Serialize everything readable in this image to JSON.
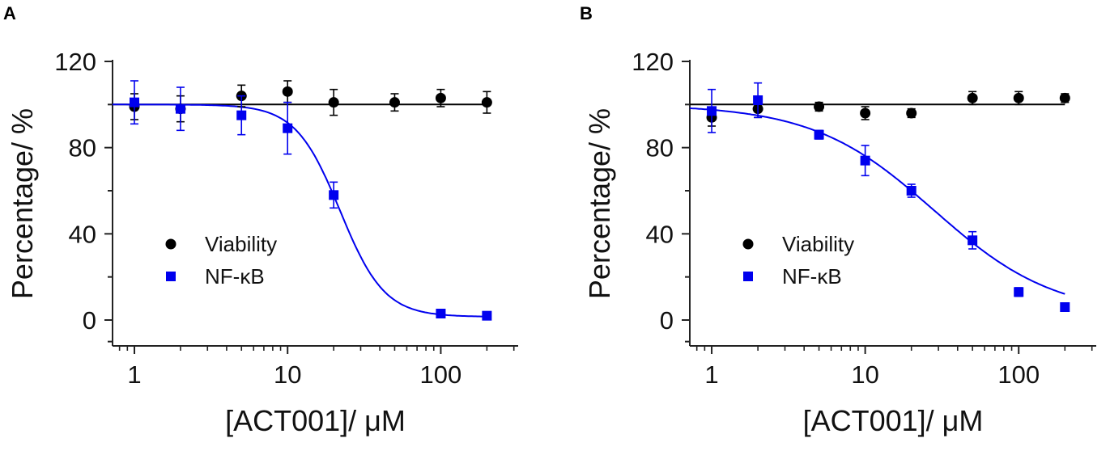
{
  "figure": {
    "panel_labels": [
      "A",
      "B"
    ]
  },
  "chart_data": [
    {
      "type": "scatter",
      "panel": "A",
      "title": "",
      "xlabel": "[ACT001]/ μM",
      "ylabel": "Percentage/ %",
      "xscale": "log",
      "xlim": [
        0.72,
        320
      ],
      "ylim": [
        -12,
        120
      ],
      "xticks": [
        1,
        10,
        100
      ],
      "xtick_labels": [
        "1",
        "10",
        "100"
      ],
      "yticks": [
        0,
        40,
        80,
        120
      ],
      "ytick_labels": [
        "0",
        "40",
        "80",
        "120"
      ],
      "grid": false,
      "legend": [
        "Viability",
        "NF-κB"
      ],
      "legend_position": "lower-left",
      "series": [
        {
          "name": "Viability",
          "color": "#000000",
          "marker": "circle",
          "x": [
            1,
            2,
            5,
            10,
            20,
            50,
            100,
            200
          ],
          "y": [
            99,
            98,
            104,
            106,
            101,
            101,
            103,
            101
          ],
          "err": [
            6,
            6,
            5,
            5,
            6,
            4,
            4,
            5
          ],
          "fit": {
            "model": "flat",
            "value": 100
          }
        },
        {
          "name": "NF-κB",
          "color": "#0000ee",
          "marker": "square",
          "x": [
            1,
            2,
            5,
            10,
            20,
            100,
            200
          ],
          "y": [
            101,
            98,
            95,
            89,
            58,
            3,
            2
          ],
          "err": [
            10,
            10,
            9,
            12,
            6,
            1,
            1
          ],
          "fit": {
            "model": "logistic",
            "top": 100,
            "bottom": 1.5,
            "ec50": 22,
            "hill": 3.0
          }
        }
      ]
    },
    {
      "type": "scatter",
      "panel": "B",
      "title": "",
      "xlabel": "[ACT001]/ μM",
      "ylabel": "Percentage/ %",
      "xscale": "log",
      "xlim": [
        0.72,
        320
      ],
      "ylim": [
        -12,
        120
      ],
      "xticks": [
        1,
        10,
        100
      ],
      "xtick_labels": [
        "1",
        "10",
        "100"
      ],
      "yticks": [
        0,
        40,
        80,
        120
      ],
      "ytick_labels": [
        "0",
        "40",
        "80",
        "120"
      ],
      "grid": false,
      "legend": [
        "Viability",
        "NF-κB"
      ],
      "legend_position": "lower-left",
      "series": [
        {
          "name": "Viability",
          "color": "#000000",
          "marker": "circle",
          "x": [
            1,
            2,
            5,
            10,
            20,
            50,
            100,
            200
          ],
          "y": [
            94,
            98,
            99,
            96,
            96,
            103,
            103,
            103
          ],
          "err": [
            4,
            4,
            2,
            3,
            2,
            3,
            3,
            2
          ],
          "fit": {
            "model": "flat",
            "value": 100
          }
        },
        {
          "name": "NF-κB",
          "color": "#0000ee",
          "marker": "square",
          "x": [
            1,
            2,
            5,
            10,
            20,
            50,
            100,
            200
          ],
          "y": [
            97,
            102,
            86,
            74,
            60,
            37,
            13,
            6
          ],
          "err": [
            10,
            8,
            2,
            7,
            3,
            4,
            2,
            1
          ],
          "fit": {
            "model": "logistic",
            "top": 100,
            "bottom": 2,
            "ec50": 28,
            "hill": 1.1
          }
        }
      ]
    }
  ]
}
